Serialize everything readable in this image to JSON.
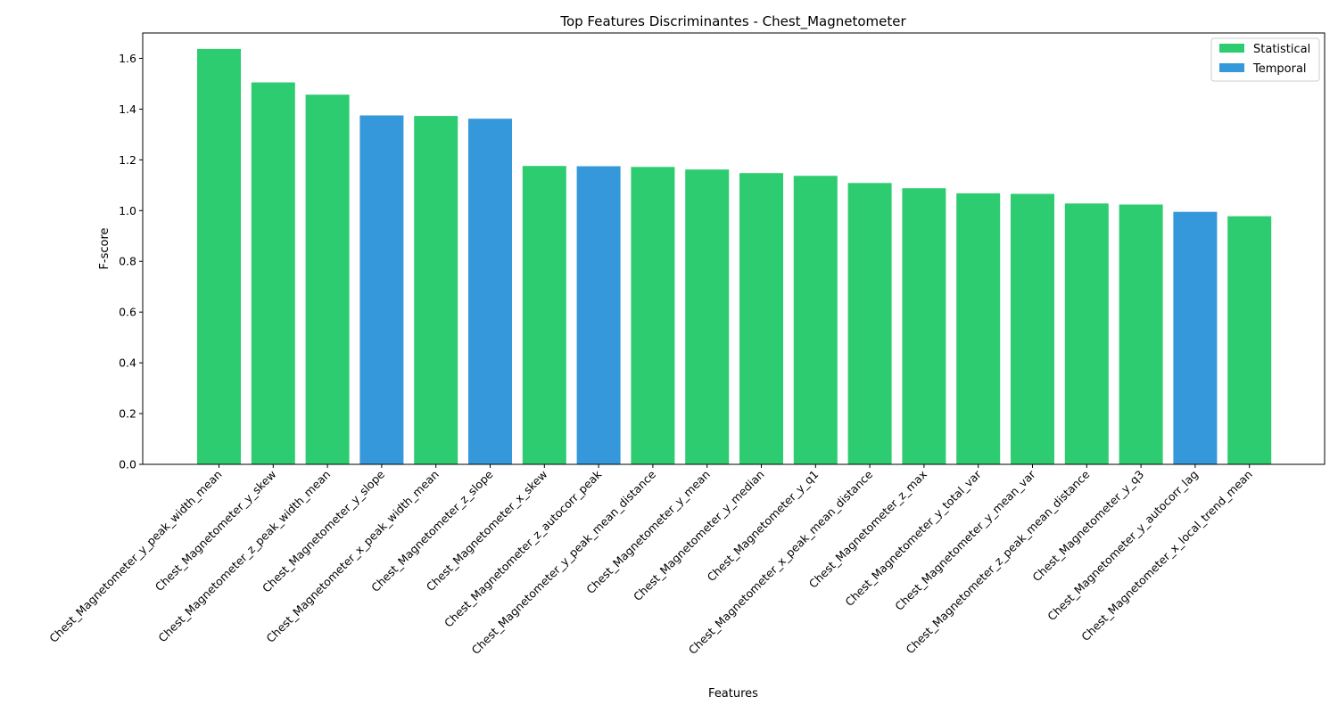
{
  "chart_data": {
    "type": "bar",
    "title": "Top Features Discriminantes - Chest_Magnetometer",
    "xlabel": "Features",
    "ylabel": "F-score",
    "ylim": [
      0,
      1.7
    ],
    "yticks": [
      "0.0",
      "0.2",
      "0.4",
      "0.6",
      "0.8",
      "1.0",
      "1.2",
      "1.4",
      "1.6"
    ],
    "grid": false,
    "legend_position": "top-right",
    "series_colors": {
      "Statistical": "#2ecc71",
      "Temporal": "#3498db"
    },
    "legend": [
      "Statistical",
      "Temporal"
    ],
    "categories": [
      "Chest_Magnetometer_y_peak_width_mean",
      "Chest_Magnetometer_y_skew",
      "Chest_Magnetometer_z_peak_width_mean",
      "Chest_Magnetometer_y_slope",
      "Chest_Magnetometer_x_peak_width_mean",
      "Chest_Magnetometer_z_slope",
      "Chest_Magnetometer_x_skew",
      "Chest_Magnetometer_z_autocorr_peak",
      "Chest_Magnetometer_y_peak_mean_distance",
      "Chest_Magnetometer_y_mean",
      "Chest_Magnetometer_y_median",
      "Chest_Magnetometer_y_q1",
      "Chest_Magnetometer_x_peak_mean_distance",
      "Chest_Magnetometer_z_max",
      "Chest_Magnetometer_y_total_var",
      "Chest_Magnetometer_y_mean_var",
      "Chest_Magnetometer_z_peak_mean_distance",
      "Chest_Magnetometer_y_q3",
      "Chest_Magnetometer_y_autocorr_lag",
      "Chest_Magnetometer_x_local_trend_mean"
    ],
    "values": [
      1.637,
      1.505,
      1.457,
      1.375,
      1.373,
      1.362,
      1.176,
      1.175,
      1.172,
      1.162,
      1.148,
      1.137,
      1.109,
      1.088,
      1.068,
      1.066,
      1.028,
      1.024,
      0.995,
      0.978
    ],
    "groups": [
      "Statistical",
      "Statistical",
      "Statistical",
      "Temporal",
      "Statistical",
      "Temporal",
      "Statistical",
      "Temporal",
      "Statistical",
      "Statistical",
      "Statistical",
      "Statistical",
      "Statistical",
      "Statistical",
      "Statistical",
      "Statistical",
      "Statistical",
      "Statistical",
      "Temporal",
      "Statistical"
    ]
  }
}
